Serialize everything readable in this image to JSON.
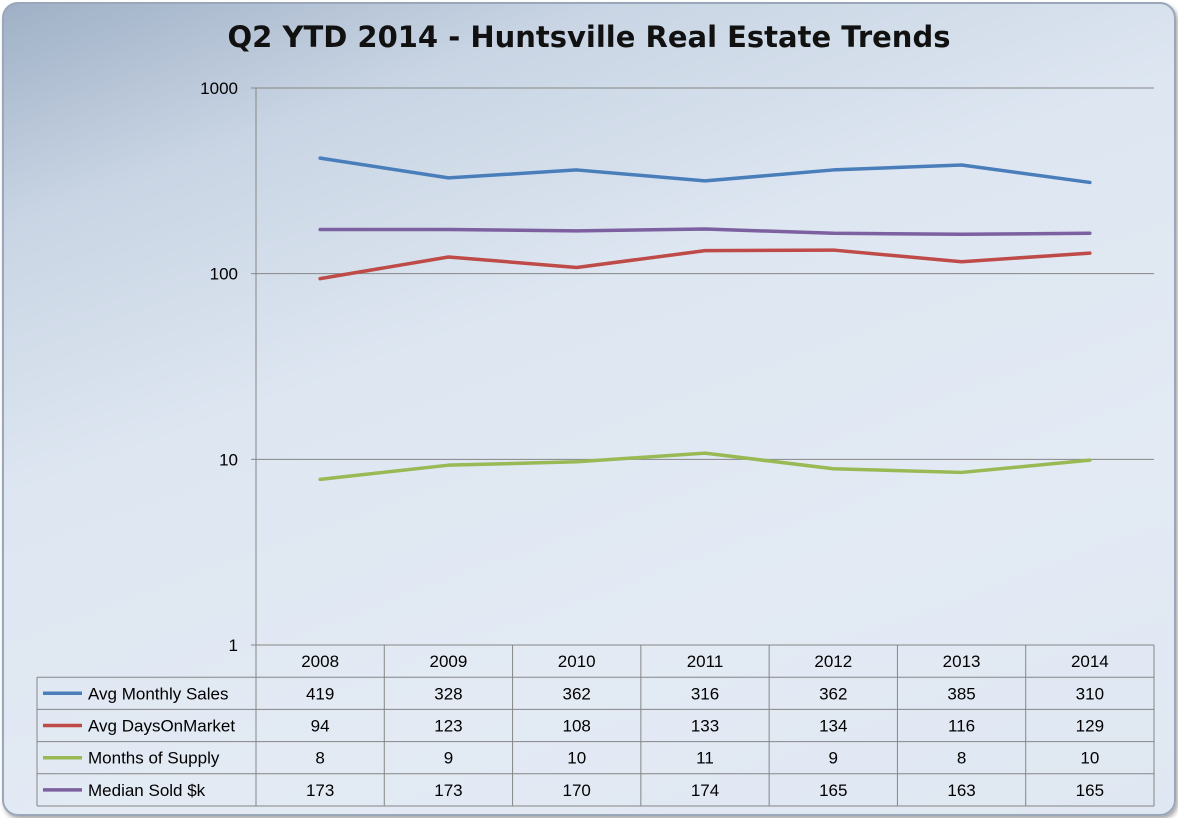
{
  "chart_data": {
    "type": "line",
    "title": "Q2 YTD 2014 - Huntsville Real Estate Trends",
    "x": [
      "2008",
      "2009",
      "2010",
      "2011",
      "2012",
      "2013",
      "2014"
    ],
    "yscale": "log",
    "ylim": [
      1,
      1000
    ],
    "yticks": [
      "1",
      "10",
      "100",
      "1000"
    ],
    "grid": true,
    "legend": "data-table-bottom",
    "series": [
      {
        "name": "Avg Monthly Sales",
        "color": "#4a7ebb",
        "values": [
          419,
          328,
          362,
          316,
          362,
          385,
          310
        ]
      },
      {
        "name": "Avg DaysOnMarket",
        "color": "#be4b48",
        "values": [
          94,
          123,
          108,
          133,
          134,
          116,
          129
        ]
      },
      {
        "name": "Months of Supply",
        "color": "#98b954",
        "values": [
          7.8,
          9.3,
          9.7,
          10.8,
          8.9,
          8.5,
          9.9
        ],
        "labels": [
          "8",
          "9",
          "10",
          "11",
          "9",
          "8",
          "10"
        ]
      },
      {
        "name": "Median Sold $k",
        "color": "#7d60a0",
        "values": [
          173,
          173,
          170,
          174,
          165,
          163,
          165
        ]
      }
    ]
  }
}
